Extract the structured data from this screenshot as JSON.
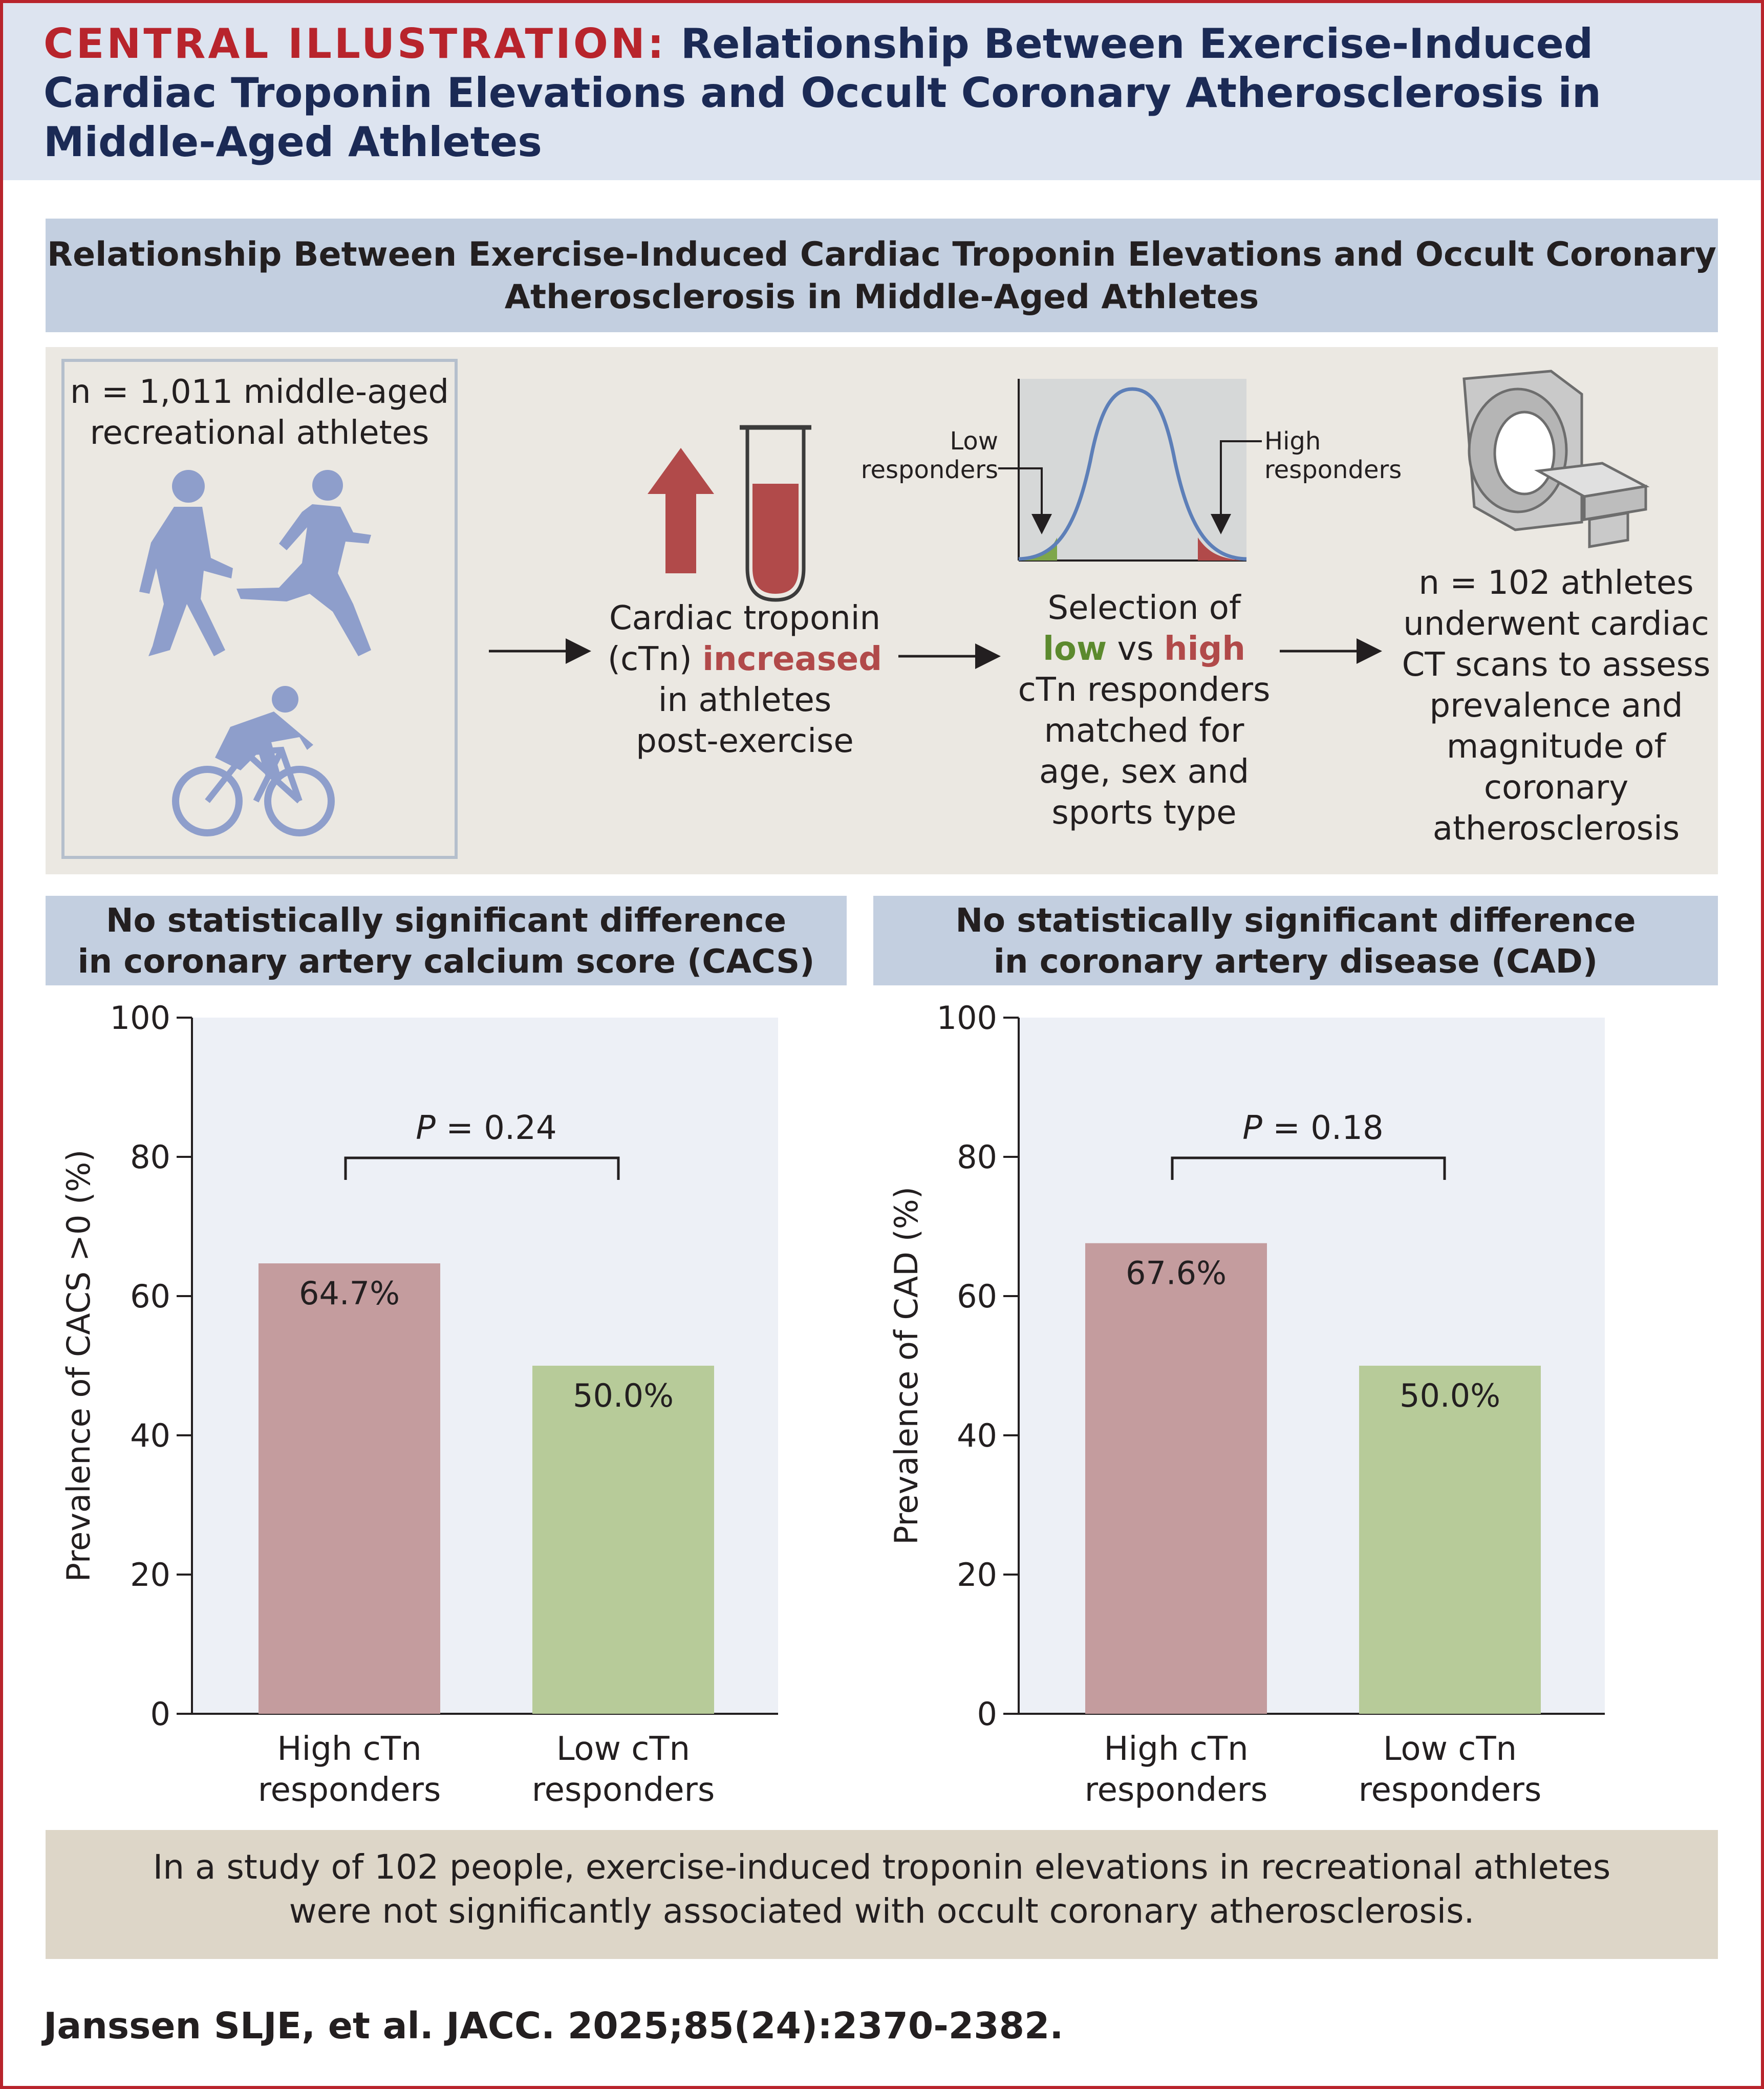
{
  "header": {
    "label": "CENTRAL ILLUSTRATION:",
    "title": "Relationship Between Exercise-Induced Cardiac Troponin Elevations and Occult Coronary Atherosclerosis in Middle-Aged Athletes"
  },
  "subheader": "Relationship Between Exercise-Induced Cardiac Troponin Elevations and Occult Coronary Atherosclerosis in Middle-Aged Athletes",
  "flow": {
    "cohort_line1": "n = 1,011 middle-aged",
    "cohort_line2": "recreational athletes",
    "troponin_line1": "Cardiac troponin",
    "troponin_pre": "(cTn)",
    "troponin_emph": "increased",
    "troponin_line3": "in athletes",
    "troponin_line4": "post-exercise",
    "low_resp_1": "Low",
    "low_resp_2": "responders",
    "high_resp_1": "High",
    "high_resp_2": "responders",
    "sel_line1": "Selection of",
    "sel_low": "low",
    "sel_vs": "vs",
    "sel_high": "high",
    "sel_line3": "cTn responders",
    "sel_line4": "matched for",
    "sel_line5": "age, sex and",
    "sel_line6": "sports type",
    "ct_line1": "n = 102 athletes",
    "ct_line2": "underwent cardiac",
    "ct_line3": "CT scans to assess",
    "ct_line4": "prevalence and",
    "ct_line5": "magnitude of",
    "ct_line6": "coronary",
    "ct_line7": "atherosclerosis"
  },
  "left_band": {
    "line1": "No statistically significant difference",
    "line2": "in coronary artery calcium score (CACS)"
  },
  "right_band": {
    "line1": "No statistically significant difference",
    "line2": "in coronary artery disease (CAD)"
  },
  "chart_data": [
    {
      "type": "bar",
      "categories": [
        "High cTn responders",
        "Low cTn responders"
      ],
      "category_lines": [
        [
          "High cTn",
          "responders"
        ],
        [
          "Low cTn",
          "responders"
        ]
      ],
      "values": [
        64.7,
        50.0
      ],
      "data_labels": [
        "64.7%",
        "50.0%"
      ],
      "colors": [
        "#c49c9e",
        "#b7cb99"
      ],
      "ylabel": "Prevalence of CACS >0 (%)",
      "xlabel": "",
      "ylim": [
        0,
        100
      ],
      "yticks": [
        0,
        20,
        40,
        60,
        80,
        100
      ],
      "p_label": "P",
      "p_value": " = 0.24"
    },
    {
      "type": "bar",
      "categories": [
        "High cTn responders",
        "Low cTn responders"
      ],
      "category_lines": [
        [
          "High cTn",
          "responders"
        ],
        [
          "Low cTn",
          "responders"
        ]
      ],
      "values": [
        67.6,
        50.0
      ],
      "data_labels": [
        "67.6%",
        "50.0%"
      ],
      "colors": [
        "#c49c9e",
        "#b7cb99"
      ],
      "ylabel": "Prevalence of CAD (%)",
      "xlabel": "",
      "ylim": [
        0,
        100
      ],
      "yticks": [
        0,
        20,
        40,
        60,
        80,
        100
      ],
      "p_label": "P",
      "p_value": " = 0.18"
    }
  ],
  "conclusion": {
    "line1": "In a study of 102 people, exercise-induced troponin elevations in recreational athletes",
    "line2": "were not significantly associated with occult coronary atherosclerosis."
  },
  "citation": "Janssen SLJE, et al. JACC. 2025;85(24):2370-2382.",
  "colors": {
    "brand_red": "#b8242c",
    "navy": "#1b2a55",
    "high": "#c49c9e",
    "low": "#b7cb99",
    "plot_bg": "#edf0f6"
  }
}
